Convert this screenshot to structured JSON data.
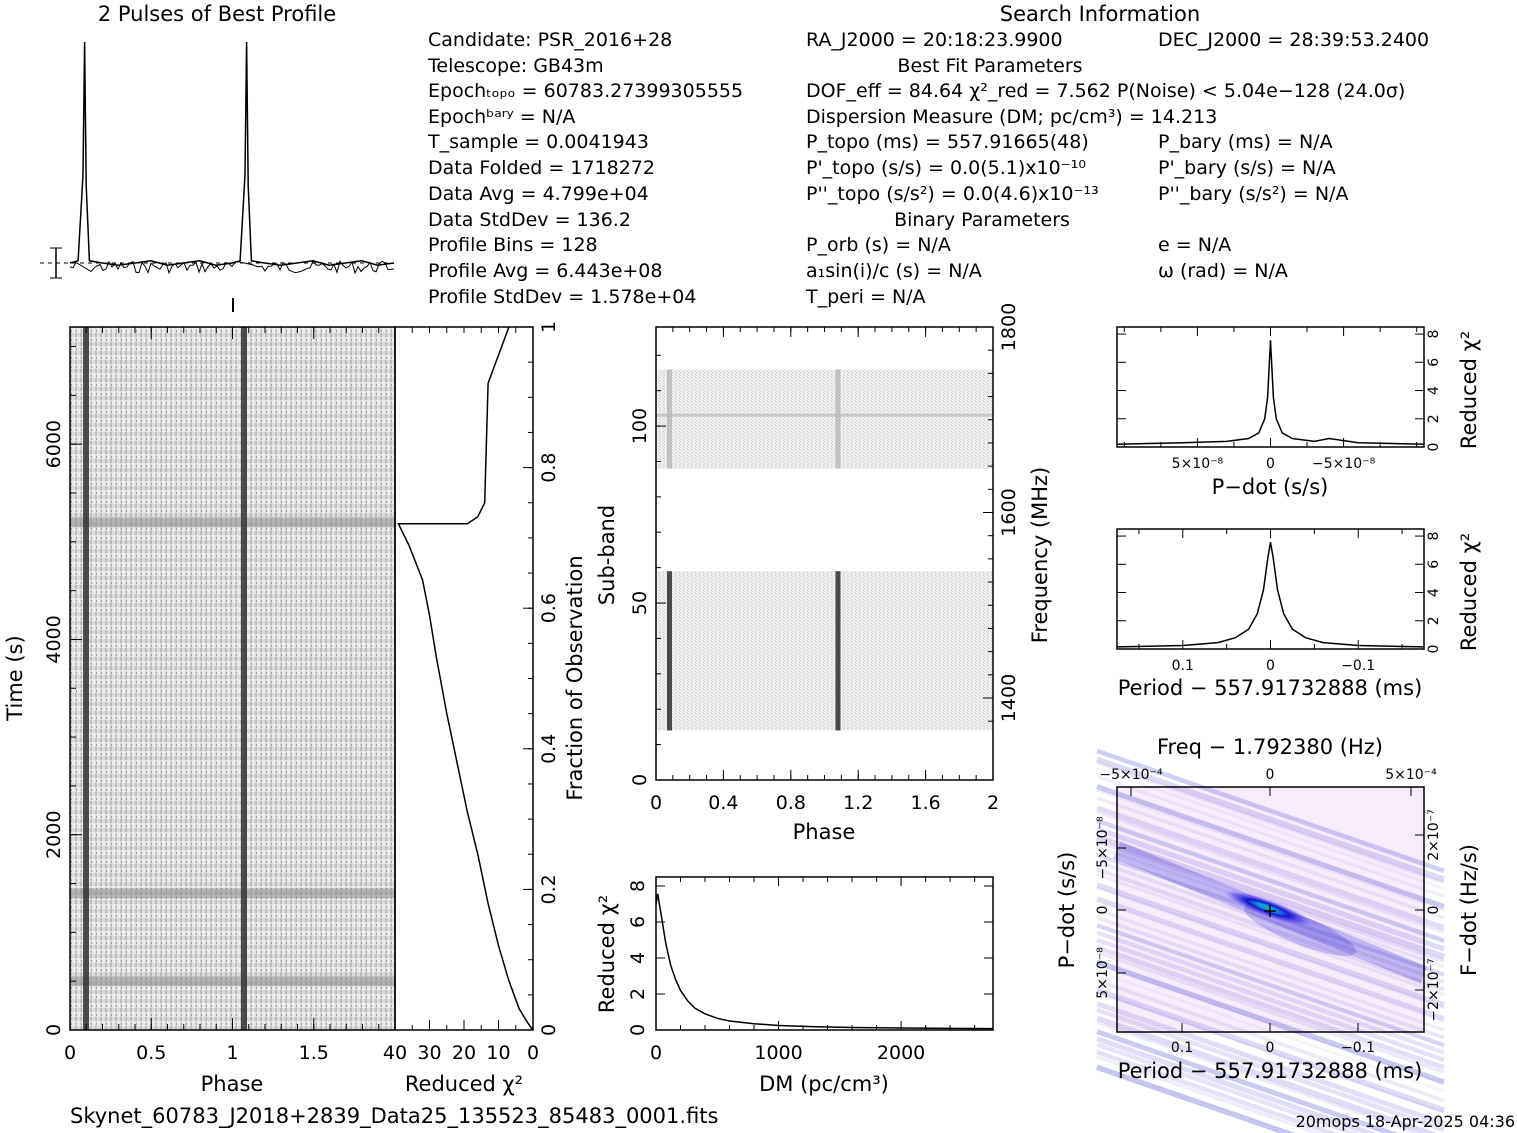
{
  "profile_title": "2 Pulses of Best Profile",
  "search_title": "Search Information",
  "info": {
    "candidate": "Candidate:   PSR_2016+28",
    "telescope": "Telescope:   GB43m",
    "epoch_topo": "Epochₜₒₚₒ = 60783.27399305555",
    "epoch_bary": "Epochᵇᵃʳʸ = N/A",
    "t_sample": "T_sample       =   0.0041943",
    "data_folded": "Data Folded     =   1718272",
    "data_avg": "Data Avg         =   4.799e+04",
    "data_std": "Data StdDev     =   136.2",
    "profile_bins": "Profile Bins     =   128",
    "profile_avg": "Profile Avg      =   6.443e+08",
    "profile_std": "Profile StdDev  =   1.578e+04",
    "ra": "RA_J2000 = 20:18:23.9900",
    "dec": "DEC_J2000 = 28:39:53.2400",
    "best_fit_title": "Best Fit Parameters",
    "dof_line": "DOF_eff = 84.64   χ²_red = 7.562   P(Noise) < 5.04e−128   (24.0σ)",
    "dm_line": "Dispersion Measure (DM; pc/cm³) = 14.213",
    "p_topo": "P_topo (ms) =   557.91665(48)",
    "p_bary": "P_bary (ms) = N/A",
    "pd_topo": "P'_topo (s/s) = 0.0(5.1)x10⁻¹⁰",
    "pd_bary": "P'_bary (s/s) = N/A",
    "pdd_topo": "P''_topo (s/s²) = 0.0(4.6)x10⁻¹³",
    "pdd_bary": "P''_bary (s/s²) = N/A",
    "binary_title": "Binary Parameters",
    "p_orb": "P_orb (s) = N/A",
    "a1sini": "a₁sin(i)/c (s) = N/A",
    "t_peri": "T_peri = N/A",
    "ecc": "e = N/A",
    "omega": "ω (rad) = N/A"
  },
  "footer": {
    "filename": "Skynet_60783_J2018+2839_Data25_135523_85483_0001.fits",
    "stamp": "20mops 18-Apr-2025 04:36"
  },
  "colors": {
    "ink": "#000000",
    "accent_green": "#00e08a",
    "accent_blue": "#1010d0",
    "accent_cyan": "#00c0e0"
  },
  "chart_data": [
    {
      "id": "profile",
      "type": "line",
      "title": "2 Pulses of Best Profile",
      "x": [
        0,
        0.05,
        0.08,
        0.09,
        0.1,
        0.12,
        0.2,
        0.3,
        0.4,
        0.5,
        0.6,
        0.7,
        0.8,
        0.9,
        1.0,
        1.05,
        1.08,
        1.09,
        1.1,
        1.12,
        1.2,
        1.3,
        1.4,
        1.5,
        1.6,
        1.7,
        1.8,
        1.9,
        2.0
      ],
      "y": [
        0.0,
        0.01,
        0.4,
        1.0,
        0.35,
        0.01,
        0.0,
        -0.01,
        0.0,
        0.01,
        -0.01,
        0.0,
        0.01,
        -0.01,
        0.0,
        0.01,
        0.4,
        1.0,
        0.35,
        0.01,
        0.0,
        -0.01,
        0.0,
        0.01,
        -0.01,
        0.0,
        0.01,
        -0.01,
        0.0
      ]
    },
    {
      "id": "time_phase",
      "type": "heatmap",
      "xlabel": "Phase",
      "ylabel": "Time (s)",
      "xlim": [
        0,
        2
      ],
      "ylim": [
        0,
        7200
      ],
      "x_ticks": [
        "0",
        "0.5",
        "1",
        "1.5"
      ],
      "y_ticks": [
        "0",
        "2000",
        "4000",
        "6000"
      ],
      "pulse_phases": [
        0.09,
        1.09
      ],
      "bright_rows_s": [
        1400,
        5200,
        500
      ]
    },
    {
      "id": "time_chi2",
      "type": "line",
      "xlabel": "Reduced χ²",
      "ylabel": "Fraction of Observation",
      "xlim": [
        40,
        0
      ],
      "ylim": [
        0,
        1
      ],
      "x_ticks": [
        "40",
        "30",
        "20",
        "10",
        "0"
      ],
      "y_ticks": [
        "0",
        "0.2",
        "0.4",
        "0.6",
        "0.8",
        "1"
      ],
      "chi2": [
        0,
        1.5,
        4,
        7,
        10,
        13,
        16,
        19,
        22,
        25,
        28,
        30,
        32,
        36,
        38,
        38,
        39,
        19,
        16,
        14,
        13,
        7
      ],
      "frac": [
        0,
        0.01,
        0.03,
        0.07,
        0.12,
        0.18,
        0.25,
        0.31,
        0.38,
        0.45,
        0.53,
        0.59,
        0.64,
        0.69,
        0.71,
        0.71,
        0.72,
        0.72,
        0.73,
        0.75,
        0.92,
        1.0
      ]
    },
    {
      "id": "subband_phase",
      "type": "heatmap",
      "xlabel": "Phase",
      "ylabel": "Sub-band",
      "ylabel_right": "Frequency (MHz)",
      "xlim": [
        0,
        2
      ],
      "ylim": [
        0,
        128
      ],
      "x_ticks": [
        "0",
        "0.4",
        "0.8",
        "1.2",
        "1.6",
        "2"
      ],
      "y_ticks": [
        "0",
        "50",
        "100"
      ],
      "right_ticks": [
        "1400",
        "1600",
        "1800"
      ],
      "active_bands": [
        [
          14,
          59
        ],
        [
          88,
          116
        ]
      ],
      "pulse_phases": [
        0.08,
        1.08
      ]
    },
    {
      "id": "dm_chi2",
      "type": "line",
      "xlabel": "DM (pc/cm³)",
      "ylabel": "Reduced χ²",
      "xlim": [
        0,
        2750
      ],
      "ylim": [
        0,
        8.5
      ],
      "x_ticks": [
        "0",
        "1000",
        "2000"
      ],
      "y_ticks": [
        "0",
        "2",
        "4",
        "6",
        "8"
      ],
      "x": [
        0,
        14,
        40,
        80,
        120,
        160,
        200,
        260,
        320,
        400,
        500,
        600,
        800,
        1000,
        1300,
        1600,
        2000,
        2400,
        2750
      ],
      "y": [
        7.0,
        7.56,
        6.5,
        4.8,
        3.6,
        2.8,
        2.2,
        1.6,
        1.2,
        0.9,
        0.65,
        0.5,
        0.35,
        0.25,
        0.18,
        0.14,
        0.11,
        0.09,
        0.08
      ]
    },
    {
      "id": "pdot_chi2",
      "type": "line",
      "xlabel": "P−dot (s/s)",
      "ylabel_right": "Reduced χ²",
      "xlim": [
        1.05e-07,
        -1.05e-07
      ],
      "ylim": [
        0,
        8.5
      ],
      "x_tick_labels": [
        "5×10⁻⁸",
        "0",
        "−5×10⁻⁸"
      ],
      "y_ticks": [
        "0",
        "2",
        "4",
        "6",
        "8"
      ],
      "x": [
        1.05e-07,
        6e-08,
        3e-08,
        1.5e-08,
        8e-09,
        4e-09,
        2e-09,
        0,
        -2e-09,
        -4e-09,
        -8e-09,
        -1.5e-08,
        -3e-08,
        -4e-08,
        -6e-08,
        -1.05e-07
      ],
      "y": [
        0.2,
        0.3,
        0.4,
        0.6,
        1.0,
        2.0,
        3.5,
        7.56,
        3.5,
        2.0,
        1.0,
        0.6,
        0.4,
        0.6,
        0.3,
        0.2
      ]
    },
    {
      "id": "period_chi2",
      "type": "line",
      "xlabel": "Period − 557.91732888 (ms)",
      "ylabel_right": "Reduced χ²",
      "xlim": [
        0.175,
        -0.175
      ],
      "ylim": [
        0,
        8.5
      ],
      "x_ticks": [
        "0.1",
        "0",
        "−0.1"
      ],
      "y_ticks": [
        "0",
        "2",
        "4",
        "6",
        "8"
      ],
      "x": [
        0.175,
        0.1,
        0.06,
        0.04,
        0.025,
        0.015,
        0.008,
        0.003,
        0,
        -0.003,
        -0.008,
        -0.015,
        -0.025,
        -0.04,
        -0.06,
        -0.1,
        -0.175
      ],
      "y": [
        0.15,
        0.25,
        0.45,
        0.8,
        1.4,
        2.5,
        4.2,
        6.5,
        7.56,
        6.5,
        4.2,
        2.5,
        1.4,
        0.8,
        0.45,
        0.25,
        0.15
      ]
    },
    {
      "id": "period_pdot",
      "type": "heatmap",
      "title": "Freq − 1.792380 (Hz)",
      "xlabel": "Period − 557.91732888 (ms)",
      "ylabel": "P−dot (s/s)",
      "ylabel_right": "F−dot (Hz/s)",
      "x_ticks": [
        "0.1",
        "0",
        "−0.1"
      ],
      "top_ticks": [
        "−5×10⁻⁴",
        "0",
        "5×10⁻⁴"
      ],
      "left_ticks": [
        "−5×10⁻⁸",
        "0",
        "5×10⁻⁸"
      ],
      "right_ticks": [
        "2×10⁻⁷",
        "0",
        "−2×10⁻⁷"
      ]
    }
  ]
}
